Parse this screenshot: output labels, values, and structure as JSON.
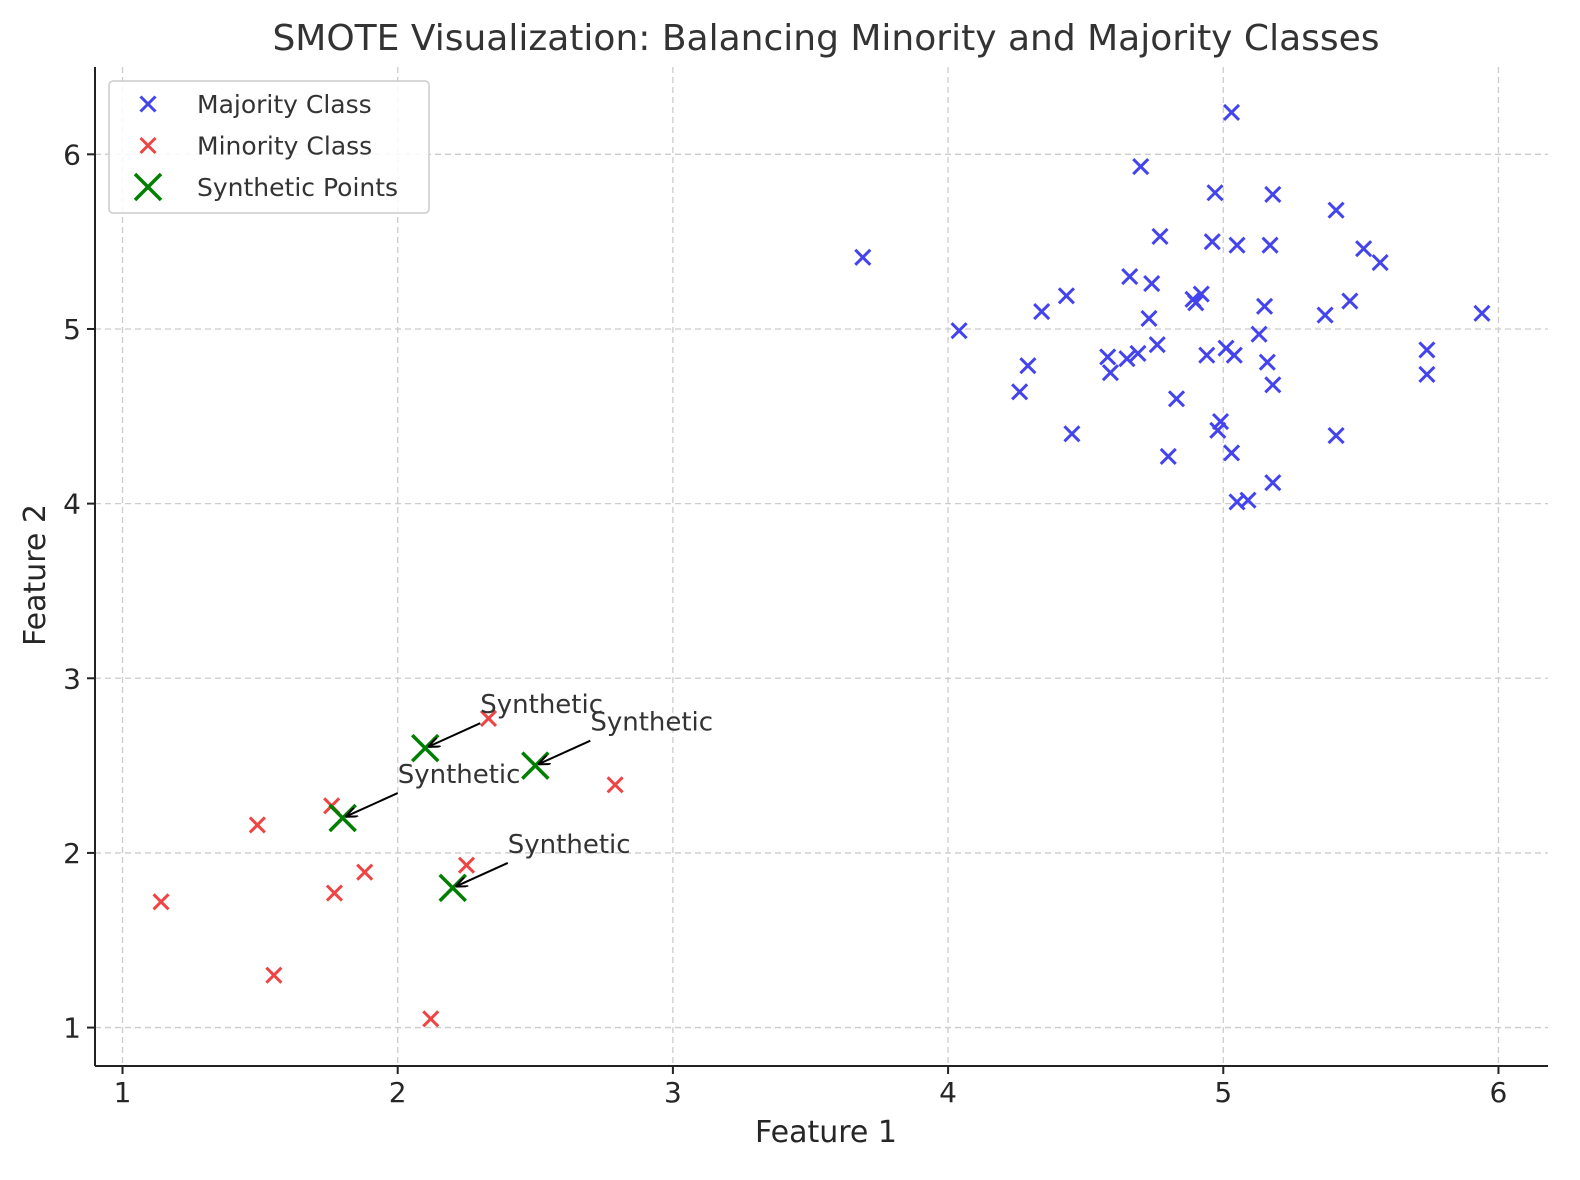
{
  "chart_data": {
    "type": "scatter",
    "title": "SMOTE Visualization: Balancing Minority and Majority Classes",
    "xlabel": "Feature 1",
    "ylabel": "Feature 2",
    "xlim": [
      0.9,
      6.18
    ],
    "ylim": [
      0.78,
      6.5
    ],
    "xticks": [
      1,
      2,
      3,
      4,
      5,
      6
    ],
    "yticks": [
      1,
      2,
      3,
      4,
      5,
      6
    ],
    "grid": true,
    "legend_position": "top-left",
    "series": [
      {
        "name": "Majority Class",
        "color": "#4444ee",
        "marker": "x-small",
        "points": [
          [
            3.69,
            5.41
          ],
          [
            4.04,
            4.99
          ],
          [
            4.26,
            4.64
          ],
          [
            4.29,
            4.79
          ],
          [
            4.34,
            5.1
          ],
          [
            4.43,
            5.19
          ],
          [
            4.45,
            4.4
          ],
          [
            4.58,
            4.84
          ],
          [
            4.59,
            4.75
          ],
          [
            4.65,
            4.83
          ],
          [
            4.66,
            5.3
          ],
          [
            4.69,
            4.86
          ],
          [
            4.7,
            5.93
          ],
          [
            4.73,
            5.06
          ],
          [
            4.74,
            5.26
          ],
          [
            4.76,
            4.91
          ],
          [
            4.77,
            5.53
          ],
          [
            4.8,
            4.27
          ],
          [
            4.83,
            4.6
          ],
          [
            4.89,
            5.17
          ],
          [
            4.9,
            5.15
          ],
          [
            4.92,
            5.2
          ],
          [
            4.94,
            4.85
          ],
          [
            4.96,
            5.5
          ],
          [
            4.97,
            5.78
          ],
          [
            4.98,
            4.42
          ],
          [
            4.99,
            4.47
          ],
          [
            5.01,
            4.89
          ],
          [
            5.03,
            6.24
          ],
          [
            5.03,
            4.29
          ],
          [
            5.04,
            4.85
          ],
          [
            5.05,
            4.01
          ],
          [
            5.05,
            5.48
          ],
          [
            5.09,
            4.02
          ],
          [
            5.13,
            4.97
          ],
          [
            5.15,
            5.13
          ],
          [
            5.16,
            4.81
          ],
          [
            5.17,
            5.48
          ],
          [
            5.18,
            5.77
          ],
          [
            5.18,
            4.68
          ],
          [
            5.18,
            4.12
          ],
          [
            5.37,
            5.08
          ],
          [
            5.41,
            5.68
          ],
          [
            5.41,
            4.39
          ],
          [
            5.46,
            5.16
          ],
          [
            5.51,
            5.46
          ],
          [
            5.57,
            5.38
          ],
          [
            5.74,
            4.88
          ],
          [
            5.74,
            4.74
          ],
          [
            5.94,
            5.09
          ]
        ]
      },
      {
        "name": "Minority Class",
        "color": "#ee4444",
        "marker": "x-small",
        "points": [
          [
            1.14,
            1.72
          ],
          [
            1.49,
            2.16
          ],
          [
            1.55,
            1.3
          ],
          [
            1.76,
            2.27
          ],
          [
            1.77,
            1.77
          ],
          [
            1.88,
            1.89
          ],
          [
            2.12,
            1.05
          ],
          [
            2.25,
            1.93
          ],
          [
            2.33,
            2.77
          ],
          [
            2.79,
            2.39
          ]
        ]
      },
      {
        "name": "Synthetic Points",
        "color": "#008000",
        "marker": "x-large",
        "points": [
          [
            2.1,
            2.6
          ],
          [
            2.5,
            2.5
          ],
          [
            1.8,
            2.2
          ],
          [
            2.2,
            1.8
          ]
        ]
      }
    ],
    "annotations": [
      {
        "text": "Synthetic",
        "target": [
          2.1,
          2.6
        ],
        "text_pos": [
          2.3,
          2.8
        ]
      },
      {
        "text": "Synthetic",
        "target": [
          2.5,
          2.5
        ],
        "text_pos": [
          2.7,
          2.7
        ]
      },
      {
        "text": "Synthetic",
        "target": [
          1.8,
          2.2
        ],
        "text_pos": [
          2.0,
          2.4
        ]
      },
      {
        "text": "Synthetic",
        "target": [
          2.2,
          1.8
        ],
        "text_pos": [
          2.4,
          2.0
        ]
      }
    ]
  }
}
